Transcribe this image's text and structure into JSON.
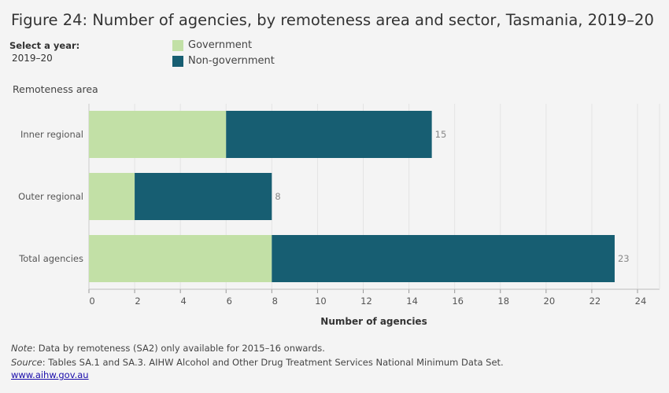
{
  "title": "Figure 24: Number of agencies, by remoteness area and sector, Tasmania, 2019–20",
  "year_selector": {
    "label": "Select a year:",
    "value": "2019–20"
  },
  "legend": [
    {
      "name": "Government",
      "color": "#c2e0a6"
    },
    {
      "name": "Non-government",
      "color": "#175e72"
    }
  ],
  "chart_data": {
    "type": "bar",
    "orientation": "horizontal",
    "stacked": true,
    "categories": [
      "Inner regional",
      "Outer regional",
      "Total agencies"
    ],
    "series": [
      {
        "name": "Government",
        "values": [
          6,
          2,
          8
        ],
        "color": "#c2e0a6"
      },
      {
        "name": "Non-government",
        "values": [
          9,
          6,
          15
        ],
        "color": "#175e72"
      }
    ],
    "totals": [
      15,
      8,
      23
    ],
    "xlabel": "Number of agencies",
    "ylabel": "Remoteness area",
    "xlim": [
      0,
      24
    ],
    "xticks": [
      0,
      2,
      4,
      6,
      8,
      10,
      12,
      14,
      16,
      18,
      20,
      22,
      24
    ],
    "grid": "vertical",
    "legend_position": "top"
  },
  "footer": {
    "note_label": "Note",
    "note_text": ":  Data by remoteness (SA2) only available for 2015–16 onwards.",
    "source_label": "Source",
    "source_text": ": Tables SA.1 and SA.3. AIHW Alcohol and Other Drug Treatment Services National Minimum Data Set.",
    "link": "www.aihw.gov.au"
  }
}
